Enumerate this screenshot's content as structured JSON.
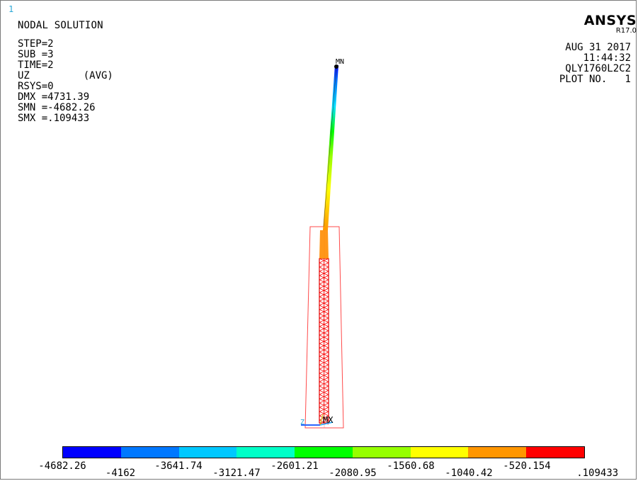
{
  "window_number": "1",
  "title": "NODAL SOLUTION",
  "parameters": [
    "STEP=2",
    "SUB =3",
    "TIME=2",
    "UZ         (AVG)",
    "RSYS=0",
    "DMX =4731.39",
    "SMN =-4682.26",
    "SMX =.109433"
  ],
  "brand": {
    "name": "ANSYS",
    "release": "R17.0"
  },
  "meta": [
    "AUG 31 2017",
    "11:44:32",
    "QLY1760L2C2",
    "PLOT NO.   1"
  ],
  "markers": {
    "mn": "MN",
    "mx": "MX",
    "axis_z": "Z"
  },
  "legend": {
    "colors": [
      "#0000ff",
      "#0078ff",
      "#00c8ff",
      "#00ffc8",
      "#00ff00",
      "#96ff00",
      "#ffff00",
      "#ff9600",
      "#ff0000"
    ],
    "labels": [
      "-4682.26",
      "-4162",
      "-3641.74",
      "-3121.47",
      "-2601.21",
      "-2080.95",
      "-1560.68",
      "-1040.42",
      "-520.154",
      ".109433"
    ]
  }
}
